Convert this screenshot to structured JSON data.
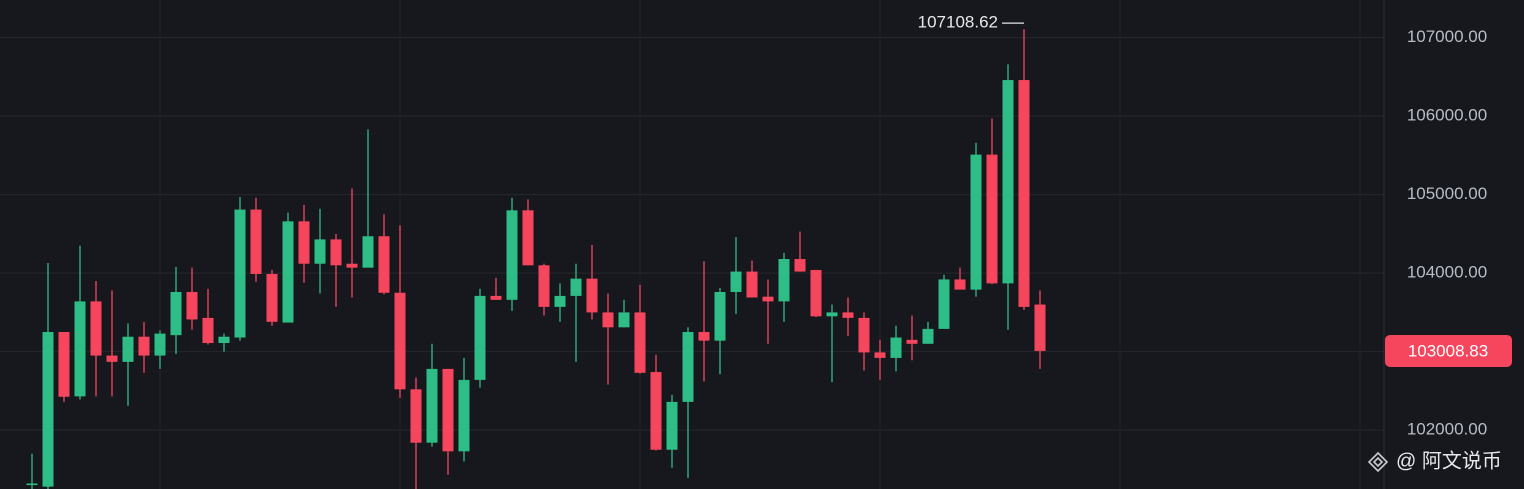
{
  "chart_data": {
    "type": "candlestick",
    "open": [
      101300,
      101280,
      103250,
      102430,
      103640,
      102950,
      102870,
      103190,
      102950,
      103210,
      103760,
      103430,
      103110,
      103180,
      104810,
      103990,
      103370,
      104660,
      104120,
      104430,
      104120,
      104070,
      104470,
      103750,
      102520,
      101840,
      102780,
      101730,
      102640,
      103710,
      103660,
      104800,
      104100,
      103570,
      103710,
      103930,
      103500,
      103310,
      103500,
      102740,
      101750,
      102360,
      103250,
      103140,
      103760,
      104020,
      103700,
      103640,
      104180,
      104040,
      103450,
      103500,
      103430,
      102990,
      102920,
      103150,
      103100,
      103290,
      103920,
      103790,
      105510,
      103870,
      106460,
      103600
    ],
    "high": [
      101700,
      104130,
      103250,
      104350,
      103900,
      103780,
      103360,
      103380,
      103270,
      104080,
      104070,
      103800,
      103230,
      104970,
      104960,
      104040,
      104770,
      104870,
      104820,
      104500,
      105080,
      105830,
      104750,
      104610,
      102670,
      103100,
      102780,
      102920,
      103800,
      103940,
      104960,
      104940,
      104120,
      103870,
      104120,
      104360,
      103740,
      103660,
      103850,
      102960,
      102450,
      103310,
      104150,
      103810,
      104460,
      104160,
      103920,
      104260,
      104530,
      104040,
      103600,
      103690,
      103500,
      103150,
      103330,
      103460,
      103380,
      103980,
      104070,
      105660,
      105970,
      106660,
      107108.62,
      103780
    ],
    "low": [
      101250,
      101250,
      102360,
      102390,
      102430,
      102430,
      102310,
      102730,
      102780,
      102970,
      103280,
      103090,
      103000,
      103140,
      103890,
      103330,
      103370,
      103880,
      103740,
      103570,
      103690,
      104070,
      103730,
      102410,
      101250,
      101790,
      101430,
      101600,
      102540,
      103660,
      103520,
      104100,
      103460,
      103380,
      102870,
      103410,
      102580,
      103310,
      102720,
      101740,
      101520,
      101390,
      102620,
      102710,
      103480,
      103690,
      103100,
      103380,
      104020,
      103440,
      102610,
      103200,
      102760,
      102640,
      102750,
      102890,
      103100,
      103290,
      103790,
      103700,
      103860,
      103280,
      103530,
      102780
    ],
    "close": [
      101320,
      103250,
      102425,
      103640,
      102950,
      102870,
      103190,
      102950,
      103230,
      103760,
      103410,
      103110,
      103190,
      104810,
      103990,
      103380,
      104660,
      104120,
      104430,
      104100,
      104070,
      104470,
      103750,
      102520,
      101840,
      102780,
      101730,
      102640,
      103710,
      103660,
      104800,
      104100,
      103570,
      103710,
      103930,
      103500,
      103310,
      103500,
      102730,
      101750,
      102360,
      103250,
      103140,
      103760,
      104020,
      103690,
      103640,
      104180,
      104020,
      103450,
      103500,
      103430,
      102990,
      102920,
      103180,
      103100,
      103290,
      103920,
      103790,
      105510,
      103870,
      106460,
      103570,
      103008.83
    ],
    "up_color": "#2ebd85",
    "down_color": "#f6465d",
    "ylim": [
      101250,
      107480
    ],
    "yticks": [
      {
        "value": 102000,
        "label": "102000.00"
      },
      {
        "value": 103000,
        "label": "103000.00"
      },
      {
        "value": 104000,
        "label": "104000.00"
      },
      {
        "value": 105000,
        "label": "105000.00"
      },
      {
        "value": 106000,
        "label": "106000.00"
      },
      {
        "value": 107000,
        "label": "107000.00"
      }
    ],
    "grid": true,
    "watermark": "@ 阿文说币"
  }
}
